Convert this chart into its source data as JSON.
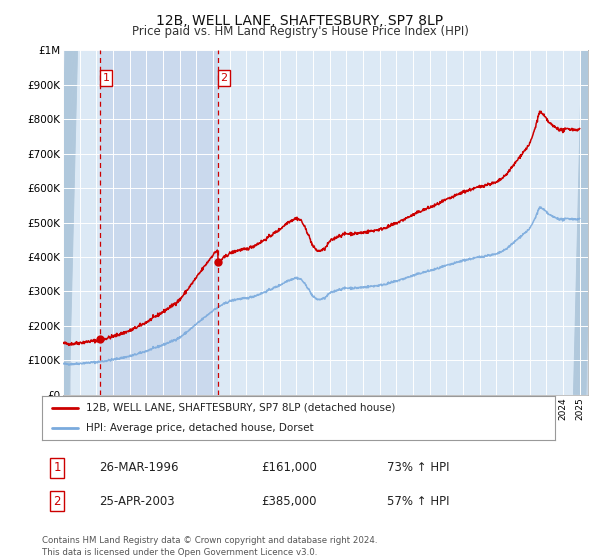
{
  "title": "12B, WELL LANE, SHAFTESBURY, SP7 8LP",
  "subtitle": "Price paid vs. HM Land Registry's House Price Index (HPI)",
  "legend_property": "12B, WELL LANE, SHAFTESBURY, SP7 8LP (detached house)",
  "legend_hpi": "HPI: Average price, detached house, Dorset",
  "transaction1_label": "1",
  "transaction1_date": "26-MAR-1996",
  "transaction1_price": "£161,000",
  "transaction1_hpi": "73% ↑ HPI",
  "transaction2_label": "2",
  "transaction2_date": "25-APR-2003",
  "transaction2_price": "£385,000",
  "transaction2_hpi": "57% ↑ HPI",
  "footer": "Contains HM Land Registry data © Crown copyright and database right 2024.\nThis data is licensed under the Open Government Licence v3.0.",
  "bg_color": "#ffffff",
  "plot_bg_color": "#dce9f5",
  "red_line_color": "#cc0000",
  "blue_line_color": "#7aaadd",
  "vline_color": "#cc0000",
  "shade_color": "#c8d8ed",
  "dot_color": "#cc0000",
  "ylim": [
    0,
    1000000
  ],
  "yticks": [
    0,
    100000,
    200000,
    300000,
    400000,
    500000,
    600000,
    700000,
    800000,
    900000,
    1000000
  ],
  "ytick_labels": [
    "£0",
    "£100K",
    "£200K",
    "£300K",
    "£400K",
    "£500K",
    "£600K",
    "£700K",
    "£800K",
    "£900K",
    "£1M"
  ],
  "xmin": 1994.0,
  "xmax": 2025.5,
  "transaction1_x": 1996.23,
  "transaction1_y": 161000,
  "transaction2_x": 2003.3,
  "transaction2_y": 385000
}
